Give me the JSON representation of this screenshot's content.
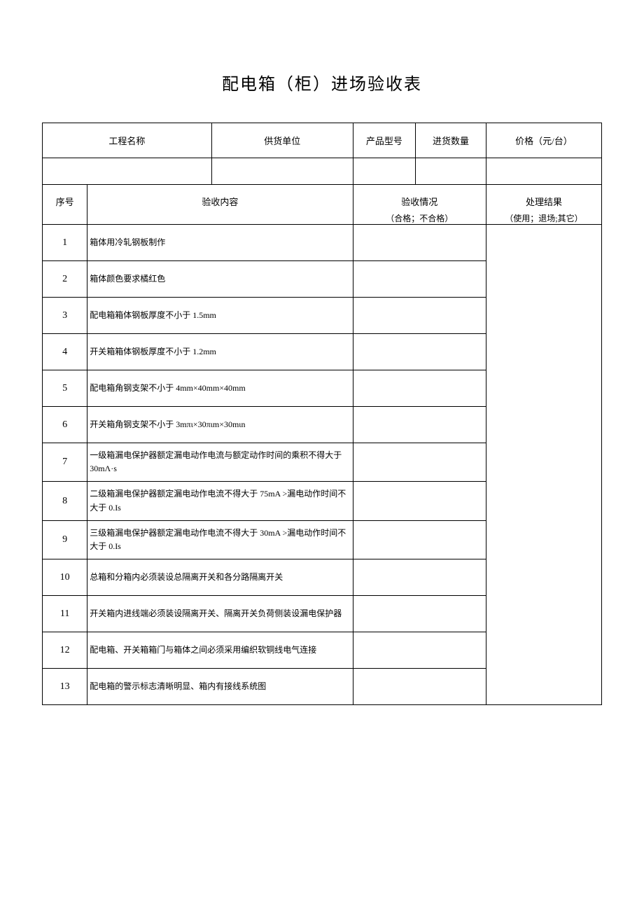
{
  "title": "配电箱（柜）进场验收表",
  "header": {
    "project_name": "工程名称",
    "supplier": "供货单位",
    "product_model": "产品型号",
    "quantity": "进货数量",
    "price": "价格（元/台）"
  },
  "section_header": {
    "seq": "序号",
    "content": "验收内容",
    "status": "验收情况",
    "status_sub": "（合格；不合格）",
    "result": "处理结果",
    "result_sub": "（使用；退场;其它）"
  },
  "rows": [
    {
      "seq": "1",
      "content": "箱体用冷轧钢板制作"
    },
    {
      "seq": "2",
      "content": "箱体颜色要求橘红色"
    },
    {
      "seq": "3",
      "content": "配电箱箱体钢板厚度不小于 1.5mm"
    },
    {
      "seq": "4",
      "content": "开关箱箱体钢板厚度不小于 1.2mm"
    },
    {
      "seq": "5",
      "content": "配电箱角钢支架不小于 4mm×40mm×40mm"
    },
    {
      "seq": "6",
      "content": "开关箱角钢支架不小于 3mπι×30πιm×30mιn"
    },
    {
      "seq": "7",
      "content": "一级箱漏电保护器额定漏电动作电流与额定动作时间的乘积不得大于 30mΛ·s"
    },
    {
      "seq": "8",
      "content": "二级箱漏电保护器额定漏电动作电流不得大于 75mA >漏电动作时间不大于 0.Is"
    },
    {
      "seq": "9",
      "content": "三级箱漏电保护器额定漏电动作电流不得大于 30mA >漏电动作时间不大于 0.Is"
    },
    {
      "seq": "10",
      "content": "总箱和分箱内必须装设总隔离开关和各分路隔离开关"
    },
    {
      "seq": "11",
      "content": "开关箱内进线端必须装设隔离开关、隔离开关负荷侧装设漏电保护器"
    },
    {
      "seq": "12",
      "content": "配电箱、开关箱箱门与箱体之间必须采用编织软铜线电气连接"
    },
    {
      "seq": "13",
      "content": "配电箱的警示标志清晰明显、箱内有接线系统图"
    }
  ],
  "styling": {
    "background_color": "#ffffff",
    "border_color": "#000000",
    "text_color": "#000000",
    "title_fontsize": 24,
    "cell_fontsize": 13,
    "content_fontsize": 12
  }
}
